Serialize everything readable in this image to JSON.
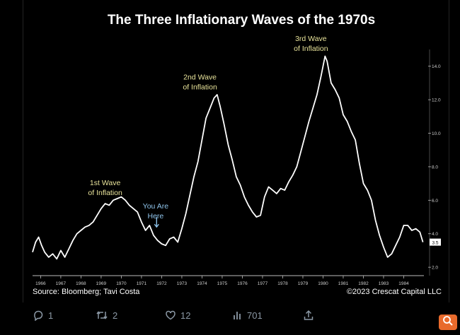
{
  "chart_data": {
    "type": "line",
    "title": "The Three Inflationary Waves of the 1970s",
    "source": "Source: Bloomberg; Tavi Costa",
    "copyright": "©2023 Crescat Capital LLC",
    "x_ticks": [
      "1966",
      "1967",
      "1968",
      "1969",
      "1970",
      "1971",
      "1972",
      "1973",
      "1974",
      "1975",
      "1976",
      "1977",
      "1978",
      "1979",
      "1980",
      "1981",
      "1982",
      "1983",
      "1984"
    ],
    "y_ticks": [
      "2.0",
      "4.0",
      "6.0",
      "8.0",
      "10.0",
      "12.0",
      "14.0"
    ],
    "y_range": [
      1.5,
      15.0
    ],
    "x_range": [
      1965.6,
      1985.0
    ],
    "current_value_label": "3.5",
    "current_value": 3.5,
    "annotations": [
      {
        "lines": [
          "1st Wave",
          "of Inflation"
        ],
        "x": 1969.2,
        "y": 6.9,
        "color": "#e8e39a"
      },
      {
        "lines": [
          "You Are",
          "Here"
        ],
        "x": 1971.7,
        "y": 5.5,
        "color": "#8ec3ea"
      },
      {
        "lines": [
          "2nd Wave",
          "of Inflation"
        ],
        "x": 1973.9,
        "y": 13.2,
        "color": "#e8e39a"
      },
      {
        "lines": [
          "3rd Wave",
          "of Inflation"
        ],
        "x": 1979.4,
        "y": 15.5,
        "color": "#e8e39a"
      }
    ],
    "line_color": "#ffffff",
    "series": [
      {
        "values": [
          [
            1965.6,
            2.9
          ],
          [
            1965.75,
            3.5
          ],
          [
            1965.9,
            3.8
          ],
          [
            1966.05,
            3.3
          ],
          [
            1966.2,
            2.9
          ],
          [
            1966.4,
            2.6
          ],
          [
            1966.6,
            2.8
          ],
          [
            1966.8,
            2.5
          ],
          [
            1967.0,
            3.0
          ],
          [
            1967.2,
            2.6
          ],
          [
            1967.4,
            3.1
          ],
          [
            1967.6,
            3.6
          ],
          [
            1967.8,
            4.0
          ],
          [
            1968.0,
            4.2
          ],
          [
            1968.2,
            4.4
          ],
          [
            1968.4,
            4.5
          ],
          [
            1968.6,
            4.7
          ],
          [
            1968.8,
            5.1
          ],
          [
            1969.0,
            5.5
          ],
          [
            1969.2,
            5.8
          ],
          [
            1969.4,
            5.7
          ],
          [
            1969.6,
            6.0
          ],
          [
            1969.8,
            6.1
          ],
          [
            1970.0,
            6.2
          ],
          [
            1970.2,
            6.0
          ],
          [
            1970.4,
            5.7
          ],
          [
            1970.6,
            5.5
          ],
          [
            1970.8,
            5.3
          ],
          [
            1971.0,
            4.7
          ],
          [
            1971.2,
            4.2
          ],
          [
            1971.4,
            4.5
          ],
          [
            1971.6,
            3.9
          ],
          [
            1971.8,
            3.6
          ],
          [
            1972.0,
            3.4
          ],
          [
            1972.2,
            3.3
          ],
          [
            1972.4,
            3.7
          ],
          [
            1972.6,
            3.8
          ],
          [
            1972.8,
            3.5
          ],
          [
            1973.0,
            4.3
          ],
          [
            1973.2,
            5.2
          ],
          [
            1973.4,
            6.3
          ],
          [
            1973.6,
            7.4
          ],
          [
            1973.8,
            8.3
          ],
          [
            1974.0,
            9.6
          ],
          [
            1974.2,
            10.9
          ],
          [
            1974.4,
            11.5
          ],
          [
            1974.6,
            12.1
          ],
          [
            1974.75,
            12.3
          ],
          [
            1974.9,
            11.6
          ],
          [
            1975.1,
            10.5
          ],
          [
            1975.3,
            9.3
          ],
          [
            1975.5,
            8.4
          ],
          [
            1975.7,
            7.4
          ],
          [
            1975.9,
            6.9
          ],
          [
            1976.1,
            6.2
          ],
          [
            1976.3,
            5.7
          ],
          [
            1976.5,
            5.3
          ],
          [
            1976.7,
            5.0
          ],
          [
            1976.9,
            5.1
          ],
          [
            1977.1,
            6.2
          ],
          [
            1977.3,
            6.8
          ],
          [
            1977.5,
            6.6
          ],
          [
            1977.7,
            6.4
          ],
          [
            1977.9,
            6.7
          ],
          [
            1978.1,
            6.6
          ],
          [
            1978.3,
            7.1
          ],
          [
            1978.5,
            7.5
          ],
          [
            1978.7,
            8.0
          ],
          [
            1978.9,
            8.9
          ],
          [
            1979.1,
            9.8
          ],
          [
            1979.3,
            10.7
          ],
          [
            1979.5,
            11.5
          ],
          [
            1979.7,
            12.3
          ],
          [
            1979.9,
            13.4
          ],
          [
            1980.1,
            14.6
          ],
          [
            1980.2,
            14.3
          ],
          [
            1980.4,
            13.0
          ],
          [
            1980.6,
            12.6
          ],
          [
            1980.8,
            12.1
          ],
          [
            1981.0,
            11.1
          ],
          [
            1981.2,
            10.7
          ],
          [
            1981.4,
            10.1
          ],
          [
            1981.6,
            9.6
          ],
          [
            1981.8,
            8.2
          ],
          [
            1982.0,
            7.0
          ],
          [
            1982.2,
            6.6
          ],
          [
            1982.4,
            6.0
          ],
          [
            1982.6,
            4.8
          ],
          [
            1982.8,
            3.9
          ],
          [
            1983.0,
            3.2
          ],
          [
            1983.2,
            2.6
          ],
          [
            1983.4,
            2.8
          ],
          [
            1983.6,
            3.3
          ],
          [
            1983.8,
            3.8
          ],
          [
            1984.0,
            4.5
          ],
          [
            1984.2,
            4.5
          ],
          [
            1984.4,
            4.2
          ],
          [
            1984.6,
            4.3
          ],
          [
            1984.8,
            4.1
          ],
          [
            1984.95,
            3.5
          ]
        ]
      }
    ]
  },
  "tweet": {
    "reply_count": "1",
    "retweet_count": "2",
    "like_count": "12",
    "view_count": "701"
  },
  "icons": [
    "reply-icon",
    "retweet-icon",
    "like-icon",
    "views-icon",
    "share-icon",
    "zoom-icon"
  ],
  "colors": {
    "background": "#000000",
    "accent": "#e86a2c",
    "action": "#8b98a5"
  }
}
